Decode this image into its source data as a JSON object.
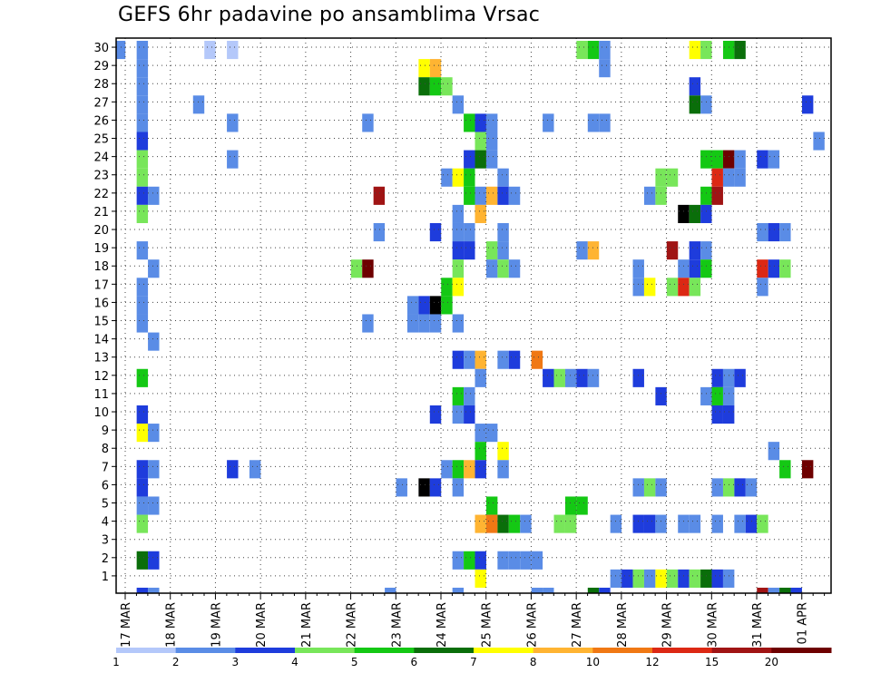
{
  "chart_data": {
    "type": "heatmap",
    "title": "GEFS 6hr padavine po ansamblima Vrsac",
    "xlabel": "",
    "ylabel": "",
    "x_ticks": [
      "17 MAR",
      "18 MAR",
      "19 MAR",
      "20 MAR",
      "21 MAR",
      "22 MAR",
      "23 MAR",
      "24 MAR",
      "25 MAR",
      "26 MAR",
      "27 MAR",
      "28 MAR",
      "29 MAR",
      "30 MAR",
      "31 MAR",
      "01 APR"
    ],
    "y_ticks": [
      "1",
      "2",
      "3",
      "4",
      "5",
      "6",
      "7",
      "8",
      "9",
      "10",
      "11",
      "12",
      "13",
      "14",
      "15",
      "16",
      "17",
      "18",
      "19",
      "20",
      "21",
      "22",
      "23",
      "24",
      "25",
      "26",
      "27",
      "28",
      "29",
      "30"
    ],
    "grid": true,
    "time_steps_per_day": 4,
    "colorbar": {
      "levels": [
        "1",
        "2",
        "3",
        "4",
        "5",
        "6",
        "7",
        "8",
        "10",
        "12",
        "15",
        "20"
      ],
      "colors": [
        "#b4c8fa",
        "#5a8ce6",
        "#1e3cdc",
        "#78e65a",
        "#14c814",
        "#0a6e0a",
        "#ffff00",
        "#ffb432",
        "#f07814",
        "#dc2814",
        "#a01414",
        "#6e0000"
      ]
    },
    "legend": "bottom colorbar",
    "series": [
      {
        "name": "30",
        "cells": [
          [
            0,
            1
          ],
          [
            2,
            1
          ],
          [
            8,
            0
          ],
          [
            10,
            0
          ],
          [
            41,
            3
          ],
          [
            42,
            4
          ],
          [
            43,
            1
          ],
          [
            51,
            6
          ],
          [
            52,
            3
          ],
          [
            54,
            4
          ],
          [
            55,
            5
          ]
        ]
      },
      {
        "name": "29",
        "cells": [
          [
            2,
            1
          ],
          [
            27,
            6
          ],
          [
            28,
            7
          ],
          [
            43,
            1
          ]
        ]
      },
      {
        "name": "28",
        "cells": [
          [
            2,
            1
          ],
          [
            27,
            5
          ],
          [
            28,
            4
          ],
          [
            29,
            3
          ],
          [
            51,
            2
          ]
        ]
      },
      {
        "name": "27",
        "cells": [
          [
            2,
            1
          ],
          [
            7,
            1
          ],
          [
            30,
            1
          ],
          [
            51,
            5
          ],
          [
            52,
            1
          ],
          [
            61,
            2
          ]
        ]
      },
      {
        "name": "26",
        "cells": [
          [
            2,
            1
          ],
          [
            10,
            1
          ],
          [
            22,
            1
          ],
          [
            31,
            4
          ],
          [
            32,
            2
          ],
          [
            33,
            1
          ],
          [
            38,
            1
          ],
          [
            42,
            1
          ],
          [
            43,
            1
          ]
        ]
      },
      {
        "name": "25",
        "cells": [
          [
            2,
            2
          ],
          [
            32,
            3
          ],
          [
            33,
            1
          ],
          [
            62,
            1
          ]
        ]
      },
      {
        "name": "24",
        "cells": [
          [
            2,
            3
          ],
          [
            10,
            1
          ],
          [
            31,
            2
          ],
          [
            32,
            5
          ],
          [
            33,
            1
          ],
          [
            52,
            4
          ],
          [
            53,
            4
          ],
          [
            54,
            11
          ],
          [
            55,
            1
          ],
          [
            57,
            2
          ],
          [
            58,
            1
          ]
        ]
      },
      {
        "name": "23",
        "cells": [
          [
            2,
            3
          ],
          [
            29,
            1
          ],
          [
            30,
            6
          ],
          [
            31,
            4
          ],
          [
            34,
            1
          ],
          [
            48,
            3
          ],
          [
            49,
            3
          ],
          [
            53,
            9
          ],
          [
            54,
            1
          ],
          [
            55,
            1
          ]
        ]
      },
      {
        "name": "22",
        "cells": [
          [
            2,
            2
          ],
          [
            3,
            1
          ],
          [
            23,
            10
          ],
          [
            31,
            4
          ],
          [
            32,
            1
          ],
          [
            33,
            7
          ],
          [
            34,
            2
          ],
          [
            35,
            1
          ],
          [
            47,
            1
          ],
          [
            48,
            3
          ],
          [
            52,
            4
          ],
          [
            53,
            10
          ]
        ]
      },
      {
        "name": "21",
        "cells": [
          [
            2,
            3
          ],
          [
            30,
            1
          ],
          [
            32,
            7
          ],
          [
            50,
            12
          ],
          [
            51,
            5
          ],
          [
            52,
            2
          ]
        ]
      },
      {
        "name": "20",
        "cells": [
          [
            23,
            1
          ],
          [
            28,
            2
          ],
          [
            30,
            1
          ],
          [
            31,
            1
          ],
          [
            34,
            1
          ],
          [
            57,
            1
          ],
          [
            58,
            2
          ],
          [
            59,
            1
          ]
        ]
      },
      {
        "name": "19",
        "cells": [
          [
            2,
            1
          ],
          [
            30,
            2
          ],
          [
            31,
            2
          ],
          [
            33,
            3
          ],
          [
            34,
            1
          ],
          [
            41,
            1
          ],
          [
            42,
            7
          ],
          [
            49,
            10
          ],
          [
            51,
            2
          ],
          [
            52,
            1
          ]
        ]
      },
      {
        "name": "18",
        "cells": [
          [
            3,
            1
          ],
          [
            21,
            3
          ],
          [
            22,
            11
          ],
          [
            30,
            3
          ],
          [
            33,
            1
          ],
          [
            34,
            3
          ],
          [
            35,
            1
          ],
          [
            46,
            1
          ],
          [
            50,
            1
          ],
          [
            51,
            2
          ],
          [
            52,
            4
          ],
          [
            57,
            9
          ],
          [
            58,
            2
          ],
          [
            59,
            3
          ]
        ]
      },
      {
        "name": "17",
        "cells": [
          [
            2,
            1
          ],
          [
            29,
            4
          ],
          [
            30,
            6
          ],
          [
            46,
            1
          ],
          [
            47,
            6
          ],
          [
            49,
            3
          ],
          [
            50,
            9
          ],
          [
            51,
            3
          ],
          [
            57,
            1
          ]
        ]
      },
      {
        "name": "16",
        "cells": [
          [
            2,
            1
          ],
          [
            26,
            1
          ],
          [
            27,
            2
          ],
          [
            28,
            12
          ],
          [
            29,
            4
          ]
        ]
      },
      {
        "name": "15",
        "cells": [
          [
            2,
            1
          ],
          [
            22,
            1
          ],
          [
            26,
            1
          ],
          [
            27,
            1
          ],
          [
            28,
            1
          ],
          [
            30,
            1
          ]
        ]
      },
      {
        "name": "14",
        "cells": [
          [
            3,
            1
          ]
        ]
      },
      {
        "name": "13",
        "cells": [
          [
            30,
            2
          ],
          [
            31,
            1
          ],
          [
            32,
            7
          ],
          [
            34,
            1
          ],
          [
            35,
            2
          ],
          [
            37,
            8
          ]
        ]
      },
      {
        "name": "12",
        "cells": [
          [
            2,
            4
          ],
          [
            32,
            1
          ],
          [
            38,
            2
          ],
          [
            39,
            3
          ],
          [
            40,
            1
          ],
          [
            41,
            2
          ],
          [
            42,
            1
          ],
          [
            46,
            2
          ],
          [
            53,
            2
          ],
          [
            54,
            1
          ],
          [
            55,
            2
          ]
        ]
      },
      {
        "name": "11",
        "cells": [
          [
            30,
            4
          ],
          [
            31,
            1
          ],
          [
            48,
            2
          ],
          [
            52,
            1
          ],
          [
            53,
            4
          ],
          [
            54,
            1
          ]
        ]
      },
      {
        "name": "10",
        "cells": [
          [
            2,
            2
          ],
          [
            28,
            2
          ],
          [
            30,
            1
          ],
          [
            31,
            2
          ],
          [
            53,
            2
          ],
          [
            54,
            2
          ]
        ]
      },
      {
        "name": "9",
        "cells": [
          [
            2,
            6
          ],
          [
            3,
            1
          ],
          [
            32,
            1
          ],
          [
            33,
            1
          ]
        ]
      },
      {
        "name": "8",
        "cells": [
          [
            32,
            4
          ],
          [
            34,
            6
          ],
          [
            58,
            1
          ]
        ]
      },
      {
        "name": "7",
        "cells": [
          [
            2,
            2
          ],
          [
            3,
            1
          ],
          [
            10,
            2
          ],
          [
            12,
            1
          ],
          [
            29,
            1
          ],
          [
            30,
            4
          ],
          [
            31,
            7
          ],
          [
            32,
            2
          ],
          [
            34,
            1
          ],
          [
            59,
            4
          ],
          [
            61,
            11
          ]
        ]
      },
      {
        "name": "6",
        "cells": [
          [
            2,
            2
          ],
          [
            25,
            1
          ],
          [
            27,
            12
          ],
          [
            28,
            2
          ],
          [
            30,
            1
          ],
          [
            46,
            1
          ],
          [
            47,
            3
          ],
          [
            48,
            1
          ],
          [
            53,
            1
          ],
          [
            54,
            3
          ],
          [
            55,
            2
          ],
          [
            56,
            1
          ]
        ]
      },
      {
        "name": "5",
        "cells": [
          [
            2,
            1
          ],
          [
            3,
            1
          ],
          [
            33,
            4
          ],
          [
            40,
            4
          ],
          [
            41,
            4
          ]
        ]
      },
      {
        "name": "4",
        "cells": [
          [
            2,
            3
          ],
          [
            32,
            7
          ],
          [
            33,
            8
          ],
          [
            34,
            5
          ],
          [
            35,
            4
          ],
          [
            36,
            1
          ],
          [
            39,
            3
          ],
          [
            40,
            3
          ],
          [
            44,
            1
          ],
          [
            46,
            2
          ],
          [
            47,
            2
          ],
          [
            48,
            1
          ],
          [
            50,
            1
          ],
          [
            51,
            1
          ],
          [
            53,
            1
          ],
          [
            55,
            1
          ],
          [
            56,
            2
          ],
          [
            57,
            3
          ]
        ]
      },
      {
        "name": "2",
        "cells": [
          [
            2,
            5
          ],
          [
            3,
            2
          ],
          [
            30,
            1
          ],
          [
            31,
            4
          ],
          [
            32,
            2
          ],
          [
            34,
            1
          ],
          [
            35,
            1
          ],
          [
            36,
            1
          ],
          [
            37,
            1
          ]
        ]
      },
      {
        "name": "1",
        "cells": [
          [
            32,
            6
          ],
          [
            44,
            1
          ],
          [
            45,
            2
          ],
          [
            46,
            3
          ],
          [
            47,
            1
          ],
          [
            48,
            6
          ],
          [
            49,
            3
          ],
          [
            50,
            2
          ],
          [
            51,
            3
          ],
          [
            52,
            5
          ],
          [
            53,
            2
          ],
          [
            54,
            1
          ]
        ]
      },
      {
        "name": "0",
        "cells": [
          [
            2,
            2
          ],
          [
            3,
            1
          ],
          [
            24,
            1
          ],
          [
            30,
            1
          ],
          [
            37,
            1
          ],
          [
            38,
            1
          ],
          [
            42,
            5
          ],
          [
            43,
            2
          ],
          [
            57,
            10
          ],
          [
            58,
            1
          ],
          [
            59,
            5
          ],
          [
            60,
            2
          ]
        ]
      }
    ]
  }
}
